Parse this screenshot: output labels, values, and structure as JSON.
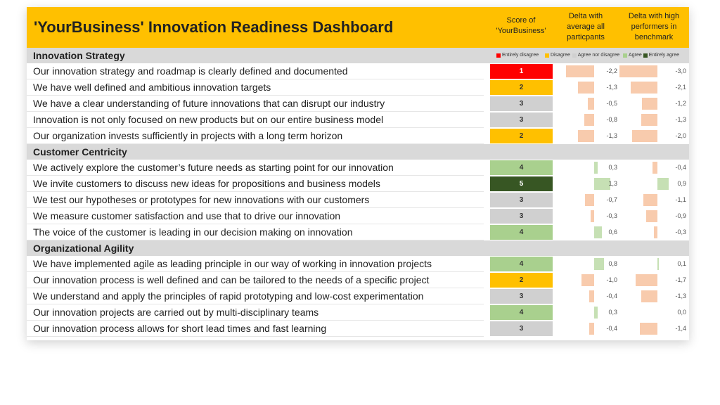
{
  "header": {
    "title": "'YourBusiness' Innovation Readiness Dashboard",
    "columns": [
      "Score of 'YourBusiness'",
      "Delta with average all particpants",
      "Delta with high performers in benchmark"
    ]
  },
  "legend": [
    {
      "label": "Entirely disagree",
      "color": "#ff0000"
    },
    {
      "label": "Disagree",
      "color": "#ffc000"
    },
    {
      "label": "Agree nor disagree",
      "color": "#d0d0d0"
    },
    {
      "label": "Agree",
      "color": "#a9d08e"
    },
    {
      "label": "Entirely agree",
      "color": "#375623"
    }
  ],
  "sections": [
    {
      "title": "Innovation Strategy",
      "rows": [
        {
          "statement": "Our innovation strategy and roadmap is clearly defined and documented",
          "score": 1,
          "delta_avg": -2.2,
          "delta_avg_label": "-2,2",
          "delta_high": -3.0,
          "delta_high_label": "-3,0"
        },
        {
          "statement": "We have well defined and ambitious innovation targets",
          "score": 2,
          "delta_avg": -1.3,
          "delta_avg_label": "-1,3",
          "delta_high": -2.1,
          "delta_high_label": "-2,1"
        },
        {
          "statement": "We have a clear understanding of future innovations that can disrupt our industry",
          "score": 3,
          "delta_avg": -0.5,
          "delta_avg_label": "-0,5",
          "delta_high": -1.2,
          "delta_high_label": "-1,2"
        },
        {
          "statement": "Innovation is not only focused on new products but on our entire business model",
          "score": 3,
          "delta_avg": -0.8,
          "delta_avg_label": "-0,8",
          "delta_high": -1.3,
          "delta_high_label": "-1,3"
        },
        {
          "statement": "Our organization invests sufficiently in projects with a long term horizon",
          "score": 2,
          "delta_avg": -1.3,
          "delta_avg_label": "-1,3",
          "delta_high": -2.0,
          "delta_high_label": "-2,0"
        }
      ]
    },
    {
      "title": "Customer Centricity",
      "rows": [
        {
          "statement": "We actively explore the customer’s future needs as starting point for our innovation",
          "score": 4,
          "delta_avg": 0.3,
          "delta_avg_label": "0,3",
          "delta_high": -0.4,
          "delta_high_label": "-0,4"
        },
        {
          "statement": "We invite customers to discuss new ideas for propositions and business models",
          "score": 5,
          "delta_avg": 1.3,
          "delta_avg_label": "1,3",
          "delta_high": 0.9,
          "delta_high_label": "0,9"
        },
        {
          "statement": "We test our hypotheses or prototypes for new innovations with our customers",
          "score": 3,
          "delta_avg": -0.7,
          "delta_avg_label": "-0,7",
          "delta_high": -1.1,
          "delta_high_label": "-1,1"
        },
        {
          "statement": "We measure customer satisfaction and use that to drive our innovation",
          "score": 3,
          "delta_avg": -0.3,
          "delta_avg_label": "-0,3",
          "delta_high": -0.9,
          "delta_high_label": "-0,9"
        },
        {
          "statement": "The voice of the customer is leading in our decision making on innovation",
          "score": 4,
          "delta_avg": 0.6,
          "delta_avg_label": "0,6",
          "delta_high": -0.3,
          "delta_high_label": "-0,3"
        }
      ]
    },
    {
      "title": "Organizational Agility",
      "rows": [
        {
          "statement": "We have implemented agile as leading principle in our way of working in innovation projects",
          "score": 4,
          "delta_avg": 0.8,
          "delta_avg_label": "0,8",
          "delta_high": 0.1,
          "delta_high_label": "0,1"
        },
        {
          "statement": "Our innovation process is well defined and can be tailored to the needs of a specific project",
          "score": 2,
          "delta_avg": -1.0,
          "delta_avg_label": "-1,0",
          "delta_high": -1.7,
          "delta_high_label": "-1,7"
        },
        {
          "statement": "We understand and apply the principles of rapid prototyping and low-cost experimentation",
          "score": 3,
          "delta_avg": -0.4,
          "delta_avg_label": "-0,4",
          "delta_high": -1.3,
          "delta_high_label": "-1,3"
        },
        {
          "statement": "Our innovation projects are carried out by multi-disciplinary teams",
          "score": 4,
          "delta_avg": 0.3,
          "delta_avg_label": "0,3",
          "delta_high": 0.0,
          "delta_high_label": "0,0"
        },
        {
          "statement": "Our innovation process allows for short lead times and fast learning",
          "score": 3,
          "delta_avg": -0.4,
          "delta_avg_label": "-0,4",
          "delta_high": -1.4,
          "delta_high_label": "-1,4"
        }
      ]
    }
  ]
}
